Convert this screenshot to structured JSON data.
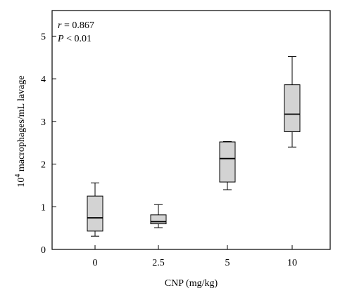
{
  "chart_data": {
    "type": "box",
    "categories": [
      "0",
      "2.5",
      "5",
      "10"
    ],
    "boxes": [
      {
        "category": "0",
        "min": 0.31,
        "q1": 0.43,
        "median": 0.74,
        "q3": 1.25,
        "max": 1.56
      },
      {
        "category": "2.5",
        "min": 0.51,
        "q1": 0.6,
        "median": 0.65,
        "q3": 0.81,
        "max": 1.05
      },
      {
        "category": "5",
        "min": 1.4,
        "q1": 1.58,
        "median": 2.13,
        "q3": 2.52,
        "max": 2.53
      },
      {
        "category": "10",
        "min": 2.4,
        "q1": 2.76,
        "median": 3.17,
        "q3": 3.86,
        "max": 4.52
      }
    ],
    "xlabel": "CNP (mg/kg)",
    "ylabel_prefix": "10",
    "ylabel_sup": "4",
    "ylabel_suffix": " macrophages/mL lavage",
    "ylim": [
      0,
      5.6
    ],
    "yticks": [
      0,
      1,
      2,
      3,
      4,
      5
    ],
    "annotation": {
      "r_symbol": "r",
      "r_text": " = 0.867",
      "p_symbol": "P",
      "p_text": " < 0.01"
    },
    "colors": {
      "box_fill": "#d3d3d3",
      "stroke": "#000000"
    },
    "grid": false
  }
}
